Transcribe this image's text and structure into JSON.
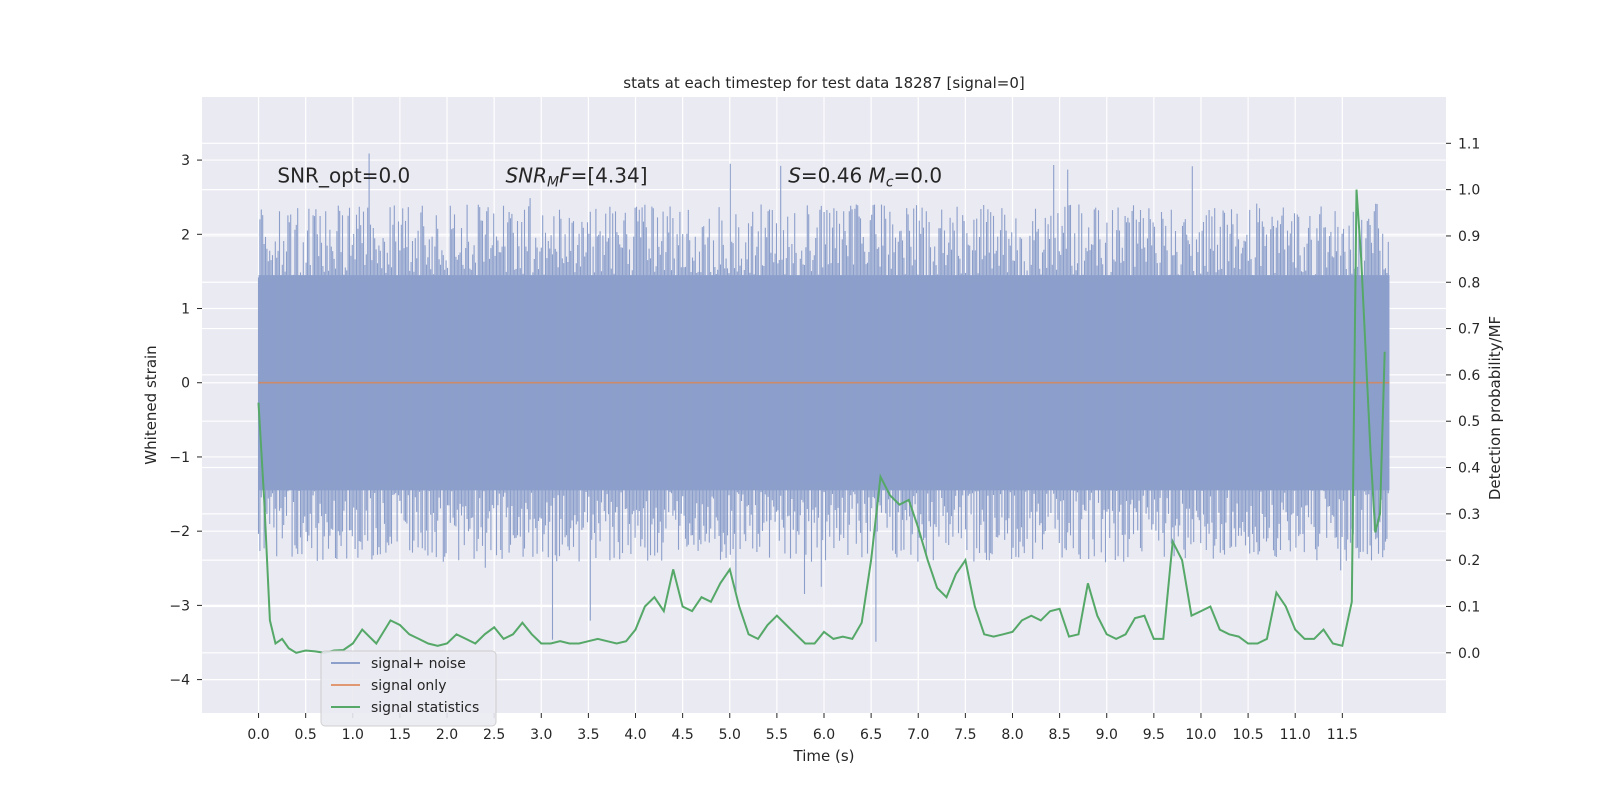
{
  "chart_data": {
    "type": "line",
    "title": "stats at each timestep for test data 18287 [signal=0]",
    "xlabel": "Time (s)",
    "ylabel": "Whitened strain",
    "y2label": "Detection probability/MF",
    "xlim": [
      -0.6,
      12.6
    ],
    "ylim": [
      -4.45,
      3.85
    ],
    "y2lim": [
      -0.13,
      1.2
    ],
    "xticks": [
      0.0,
      0.5,
      1.0,
      1.5,
      2.0,
      2.5,
      3.0,
      3.5,
      4.0,
      4.5,
      5.0,
      5.5,
      6.0,
      6.5,
      7.0,
      7.5,
      8.0,
      8.5,
      9.0,
      9.5,
      10.0,
      10.5,
      11.0,
      11.5
    ],
    "xtick_labels": [
      "0.0",
      "0.5",
      "1.0",
      "1.5",
      "2.0",
      "2.5",
      "3.0",
      "3.5",
      "4.0",
      "4.5",
      "5.0",
      "5.5",
      "6.0",
      "6.5",
      "7.0",
      "7.5",
      "8.0",
      "8.5",
      "9.0",
      "9.5",
      "10.0",
      "10.5",
      "11.0",
      "11.5"
    ],
    "yticks": [
      -4,
      -3,
      -2,
      -1,
      0,
      1,
      2,
      3
    ],
    "ytick_labels": [
      "−4",
      "−3",
      "−2",
      "−1",
      "0",
      "1",
      "2",
      "3"
    ],
    "y2ticks": [
      0.0,
      0.1,
      0.2,
      0.3,
      0.4,
      0.5,
      0.6,
      0.7,
      0.8,
      0.9,
      1.0,
      1.1
    ],
    "y2tick_labels": [
      "0.0",
      "0.1",
      "0.2",
      "0.3",
      "0.4",
      "0.5",
      "0.6",
      "0.7",
      "0.8",
      "0.9",
      "1.0",
      "1.1"
    ],
    "grid": true,
    "legend_position": "lower-left",
    "annotations": [
      {
        "id": "snr-opt",
        "x": 0.2,
        "y": 2.7,
        "parts": [
          {
            "t": "SNR_opt=0.0"
          }
        ]
      },
      {
        "id": "snr-mf",
        "x": 2.62,
        "y": 2.7,
        "parts": [
          {
            "t": "SNR",
            "i": true
          },
          {
            "t": "M",
            "i": true,
            "sub": true
          },
          {
            "t": "F",
            "i": true
          },
          {
            "t": "=[4.34]"
          }
        ]
      },
      {
        "id": "s-mc",
        "x": 5.62,
        "y": 2.7,
        "parts": [
          {
            "t": "S",
            "i": true
          },
          {
            "t": "=0.46   "
          },
          {
            "t": "M",
            "i": true
          },
          {
            "t": "c",
            "i": true,
            "sub": true
          },
          {
            "t": "=0.0"
          }
        ]
      }
    ],
    "series": [
      {
        "name": "signal+ noise",
        "axis": "left",
        "color": "#8c9fcb",
        "style": "noise-band",
        "t_range": [
          0.0,
          12.0
        ],
        "core_range": [
          -1.45,
          1.45
        ],
        "typical_peak_range": [
          -2.3,
          2.3
        ],
        "extreme_max": 3.5,
        "extreme_min": -3.7
      },
      {
        "name": "signal only",
        "axis": "left",
        "color": "#dd8452",
        "x": [
          0.0,
          12.0
        ],
        "y": [
          0.0,
          0.0
        ]
      },
      {
        "name": "signal statistics",
        "axis": "right",
        "color": "#55a868",
        "x": [
          0.0,
          0.06,
          0.12,
          0.18,
          0.25,
          0.32,
          0.4,
          0.5,
          0.6,
          0.7,
          0.8,
          0.9,
          1.0,
          1.1,
          1.25,
          1.4,
          1.5,
          1.6,
          1.7,
          1.8,
          1.9,
          2.0,
          2.1,
          2.2,
          2.3,
          2.4,
          2.5,
          2.6,
          2.7,
          2.8,
          2.9,
          3.0,
          3.1,
          3.2,
          3.3,
          3.4,
          3.5,
          3.6,
          3.7,
          3.8,
          3.9,
          4.0,
          4.1,
          4.2,
          4.3,
          4.4,
          4.5,
          4.6,
          4.7,
          4.8,
          4.9,
          5.0,
          5.1,
          5.2,
          5.3,
          5.4,
          5.5,
          5.6,
          5.7,
          5.8,
          5.9,
          6.0,
          6.1,
          6.2,
          6.3,
          6.4,
          6.5,
          6.6,
          6.7,
          6.8,
          6.9,
          7.0,
          7.1,
          7.2,
          7.3,
          7.4,
          7.5,
          7.6,
          7.7,
          7.8,
          7.9,
          8.0,
          8.1,
          8.2,
          8.3,
          8.4,
          8.5,
          8.6,
          8.7,
          8.8,
          8.9,
          9.0,
          9.1,
          9.2,
          9.3,
          9.4,
          9.5,
          9.6,
          9.7,
          9.8,
          9.9,
          10.0,
          10.1,
          10.2,
          10.3,
          10.4,
          10.5,
          10.6,
          10.7,
          10.8,
          10.9,
          11.0,
          11.1,
          11.2,
          11.3,
          11.4,
          11.5,
          11.6,
          11.65,
          11.7,
          11.8,
          11.85,
          11.9,
          11.95
        ],
        "y": [
          0.54,
          0.33,
          0.07,
          0.02,
          0.03,
          0.01,
          0.0,
          0.005,
          0.003,
          0.0,
          0.005,
          0.006,
          0.02,
          0.05,
          0.02,
          0.07,
          0.06,
          0.04,
          0.03,
          0.02,
          0.015,
          0.02,
          0.04,
          0.03,
          0.02,
          0.04,
          0.055,
          0.03,
          0.04,
          0.065,
          0.04,
          0.02,
          0.02,
          0.025,
          0.02,
          0.02,
          0.025,
          0.03,
          0.025,
          0.02,
          0.025,
          0.05,
          0.1,
          0.12,
          0.09,
          0.18,
          0.1,
          0.09,
          0.12,
          0.11,
          0.15,
          0.18,
          0.1,
          0.04,
          0.03,
          0.06,
          0.08,
          0.06,
          0.04,
          0.02,
          0.02,
          0.045,
          0.03,
          0.035,
          0.03,
          0.065,
          0.2,
          0.38,
          0.34,
          0.32,
          0.33,
          0.27,
          0.2,
          0.14,
          0.12,
          0.17,
          0.2,
          0.1,
          0.04,
          0.035,
          0.04,
          0.045,
          0.07,
          0.08,
          0.07,
          0.09,
          0.095,
          0.035,
          0.04,
          0.15,
          0.08,
          0.04,
          0.03,
          0.04,
          0.075,
          0.08,
          0.03,
          0.03,
          0.24,
          0.2,
          0.08,
          0.09,
          0.1,
          0.05,
          0.04,
          0.035,
          0.02,
          0.02,
          0.03,
          0.13,
          0.1,
          0.05,
          0.03,
          0.03,
          0.05,
          0.02,
          0.015,
          0.11,
          1.0,
          0.85,
          0.43,
          0.26,
          0.3,
          0.65
        ]
      }
    ]
  }
}
